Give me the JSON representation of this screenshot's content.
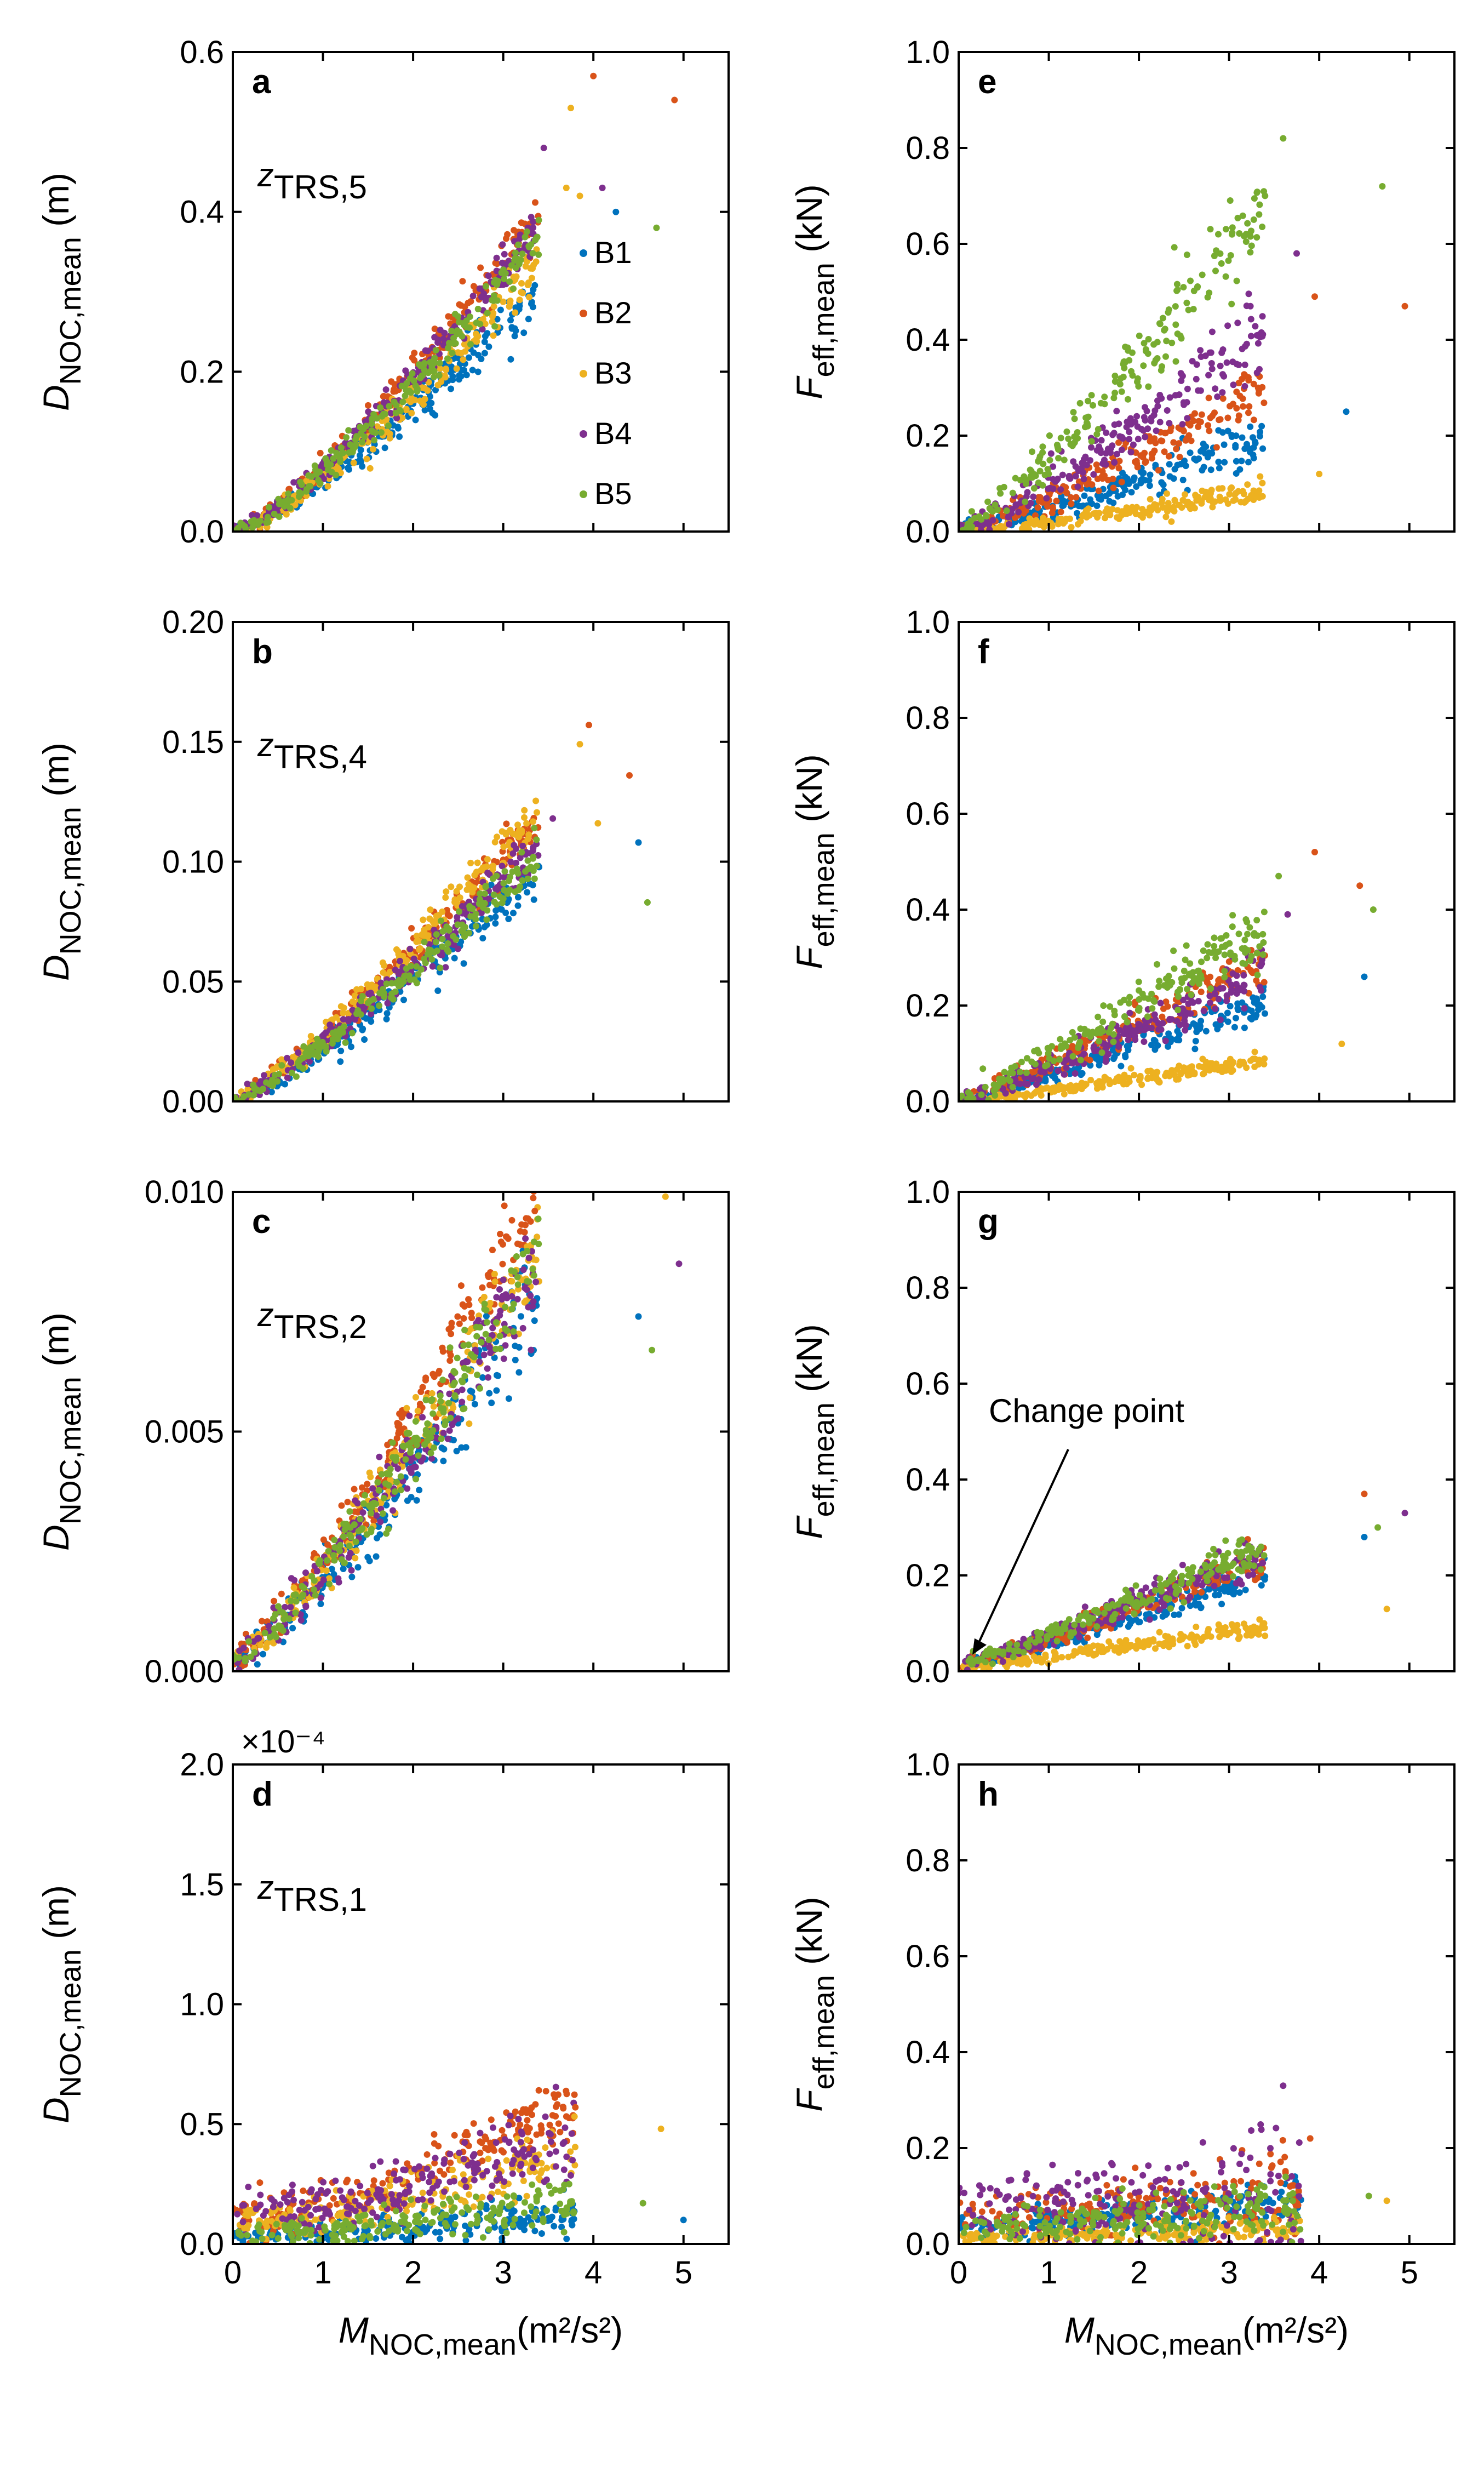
{
  "colors": {
    "B1": "#0072BD",
    "B2": "#D95319",
    "B3": "#EDB120",
    "B4": "#7E2F8E",
    "B5": "#77AC30"
  },
  "legend": [
    "B1",
    "B2",
    "B3",
    "B4",
    "B5"
  ],
  "x_axis": {
    "label_main": "M",
    "label_sub": "NOC,mean",
    "label_units": "(m²/s²)",
    "ticks": [
      "0",
      "1",
      "2",
      "3",
      "4",
      "5"
    ],
    "range": [
      0,
      5.5
    ]
  },
  "annotation": {
    "text": "Change point"
  },
  "chart_data": [
    {
      "type": "scatter",
      "panel": "a",
      "zone_main": "z",
      "zone_sub": "TRS,5",
      "ylabel_main": "D",
      "ylabel_sub": "NOC,mean",
      "ylabel_units": "(m)",
      "ylim": [
        0,
        0.6
      ],
      "yticks": [
        "0.0",
        "0.2",
        "0.4",
        "0.6"
      ],
      "exponent": "",
      "trend": [
        0.062,
        0.08,
        0.068,
        0.078,
        0.075
      ],
      "noise": [
        0.012,
        0.012,
        0.012,
        0.012,
        0.012
      ],
      "power": 1.3,
      "xmax": 3.4,
      "base": [
        0,
        0,
        0,
        0,
        0
      ],
      "outliers": [
        {
          "series": "B1",
          "x": 4.25,
          "y": 0.4
        },
        {
          "series": "B2",
          "x": 4.0,
          "y": 0.57
        },
        {
          "series": "B2",
          "x": 4.9,
          "y": 0.54
        },
        {
          "series": "B3",
          "x": 3.75,
          "y": 0.53
        },
        {
          "series": "B3",
          "x": 3.85,
          "y": 0.42
        },
        {
          "series": "B3",
          "x": 3.7,
          "y": 0.43
        },
        {
          "series": "B4",
          "x": 3.45,
          "y": 0.48
        },
        {
          "series": "B4",
          "x": 4.1,
          "y": 0.43
        },
        {
          "series": "B5",
          "x": 4.7,
          "y": 0.38
        }
      ]
    },
    {
      "type": "scatter",
      "panel": "b",
      "zone_main": "z",
      "zone_sub": "TRS,4",
      "ylabel_main": "D",
      "ylabel_sub": "NOC,mean",
      "ylabel_units": "(m)",
      "ylim": [
        0,
        0.2
      ],
      "yticks": [
        "0.00",
        "0.05",
        "0.10",
        "0.15",
        "0.20"
      ],
      "exponent": "",
      "trend": [
        0.022,
        0.027,
        0.028,
        0.025,
        0.024
      ],
      "noise": [
        0.004,
        0.004,
        0.004,
        0.004,
        0.004
      ],
      "power": 1.2,
      "xmax": 3.4,
      "base": [
        0,
        0,
        0,
        0,
        0
      ],
      "outliers": [
        {
          "series": "B1",
          "x": 4.5,
          "y": 0.108
        },
        {
          "series": "B2",
          "x": 3.95,
          "y": 0.157
        },
        {
          "series": "B2",
          "x": 4.4,
          "y": 0.136
        },
        {
          "series": "B3",
          "x": 3.85,
          "y": 0.149
        },
        {
          "series": "B3",
          "x": 4.05,
          "y": 0.116
        },
        {
          "series": "B4",
          "x": 3.55,
          "y": 0.118
        },
        {
          "series": "B5",
          "x": 4.6,
          "y": 0.083
        }
      ]
    },
    {
      "type": "scatter",
      "panel": "c",
      "zone_main": "z",
      "zone_sub": "TRS,2",
      "ylabel_main": "D",
      "ylabel_sub": "NOC,mean",
      "ylabel_units": "(m)",
      "ylim": [
        0,
        0.01
      ],
      "yticks": [
        "0.000",
        "0.005",
        "0.010"
      ],
      "exponent": "",
      "trend": [
        0.00165,
        0.0021,
        0.0019,
        0.0018,
        0.00185
      ],
      "noise": [
        0.0004,
        0.0004,
        0.0004,
        0.0004,
        0.0004
      ],
      "power": 1.25,
      "xmax": 3.4,
      "base": [
        0.0002,
        0.0003,
        0.0002,
        0.0003,
        0.0003
      ],
      "outliers": [
        {
          "series": "B1",
          "x": 4.5,
          "y": 0.0074
        },
        {
          "series": "B2",
          "x": 3.35,
          "y": 0.0096
        },
        {
          "series": "B3",
          "x": 4.8,
          "y": 0.0099
        },
        {
          "series": "B4",
          "x": 4.95,
          "y": 0.0085
        },
        {
          "series": "B5",
          "x": 4.65,
          "y": 0.0067
        }
      ]
    },
    {
      "type": "scatter",
      "panel": "d",
      "zone_main": "z",
      "zone_sub": "TRS,1",
      "ylabel_main": "D",
      "ylabel_sub": "NOC,mean",
      "ylabel_units": "(m)",
      "ylim": [
        0,
        2.0
      ],
      "yticks": [
        "0.0",
        "0.5",
        "1.0",
        "1.5",
        "2.0"
      ],
      "exponent": "×10⁻⁴",
      "trend": [
        0.01,
        0.06,
        0.035,
        0.04,
        0.015
      ],
      "noise": [
        0.03,
        0.05,
        0.04,
        0.06,
        0.04
      ],
      "power": 1.6,
      "xmax": 3.8,
      "base": [
        0.04,
        0.12,
        0.1,
        0.14,
        0.05
      ],
      "outliers": [
        {
          "series": "B1",
          "x": 5.0,
          "y": 0.1
        },
        {
          "series": "B2",
          "x": 3.8,
          "y": 0.57
        },
        {
          "series": "B3",
          "x": 4.75,
          "y": 0.48
        },
        {
          "series": "B5",
          "x": 4.55,
          "y": 0.17
        }
      ]
    },
    {
      "type": "scatter",
      "panel": "e",
      "zone_main": "",
      "zone_sub": "",
      "ylabel_main": "F",
      "ylabel_sub": "eff,mean",
      "ylabel_units": "(kN)",
      "ylim": [
        0,
        1.0
      ],
      "yticks": [
        "0.0",
        "0.2",
        "0.4",
        "0.6",
        "0.8",
        "1.0"
      ],
      "exponent": "",
      "trend": [
        0.045,
        0.07,
        0.02,
        0.095,
        0.155
      ],
      "noise": [
        0.02,
        0.025,
        0.01,
        0.03,
        0.04
      ],
      "power": 1.2,
      "xmax": 3.4,
      "base": [
        0,
        0,
        0,
        0,
        0
      ],
      "outliers": [
        {
          "series": "B1",
          "x": 4.3,
          "y": 0.25
        },
        {
          "series": "B2",
          "x": 3.95,
          "y": 0.49
        },
        {
          "series": "B2",
          "x": 4.95,
          "y": 0.47
        },
        {
          "series": "B3",
          "x": 4.0,
          "y": 0.12
        },
        {
          "series": "B4",
          "x": 3.75,
          "y": 0.58
        },
        {
          "series": "B5",
          "x": 3.6,
          "y": 0.82
        },
        {
          "series": "B5",
          "x": 4.7,
          "y": 0.72
        }
      ]
    },
    {
      "type": "scatter",
      "panel": "f",
      "zone_main": "",
      "zone_sub": "",
      "ylabel_main": "F",
      "ylabel_sub": "eff,mean",
      "ylabel_units": "(kN)",
      "ylim": [
        0,
        1.0
      ],
      "yticks": [
        "0.0",
        "0.2",
        "0.4",
        "0.6",
        "0.8",
        "1.0"
      ],
      "exponent": "",
      "trend": [
        0.055,
        0.075,
        0.022,
        0.07,
        0.095
      ],
      "noise": [
        0.015,
        0.02,
        0.008,
        0.02,
        0.025
      ],
      "power": 1.1,
      "xmax": 3.4,
      "base": [
        0,
        0,
        0,
        0,
        0
      ],
      "outliers": [
        {
          "series": "B1",
          "x": 4.5,
          "y": 0.26
        },
        {
          "series": "B2",
          "x": 3.95,
          "y": 0.52
        },
        {
          "series": "B2",
          "x": 4.45,
          "y": 0.45
        },
        {
          "series": "B3",
          "x": 4.25,
          "y": 0.12
        },
        {
          "series": "B4",
          "x": 3.65,
          "y": 0.39
        },
        {
          "series": "B5",
          "x": 3.55,
          "y": 0.47
        },
        {
          "series": "B5",
          "x": 4.6,
          "y": 0.4
        }
      ]
    },
    {
      "type": "scatter",
      "panel": "g",
      "zone_main": "",
      "zone_sub": "",
      "ylabel_main": "F",
      "ylabel_sub": "eff,mean",
      "ylabel_units": "(kN)",
      "ylim": [
        0,
        1.0
      ],
      "yticks": [
        "0.0",
        "0.2",
        "0.4",
        "0.6",
        "0.8",
        "1.0"
      ],
      "exponent": "",
      "trend": [
        0.05,
        0.06,
        0.022,
        0.062,
        0.065
      ],
      "noise": [
        0.012,
        0.015,
        0.008,
        0.015,
        0.015
      ],
      "power": 1.1,
      "xmax": 3.4,
      "base": [
        0.01,
        0.01,
        0.01,
        0.01,
        0.015
      ],
      "outliers": [
        {
          "series": "B1",
          "x": 4.5,
          "y": 0.28
        },
        {
          "series": "B2",
          "x": 4.5,
          "y": 0.37
        },
        {
          "series": "B3",
          "x": 4.75,
          "y": 0.13
        },
        {
          "series": "B4",
          "x": 4.95,
          "y": 0.33
        },
        {
          "series": "B5",
          "x": 4.65,
          "y": 0.3
        }
      ]
    },
    {
      "type": "scatter",
      "panel": "h",
      "zone_main": "",
      "zone_sub": "",
      "ylabel_main": "F",
      "ylabel_sub": "eff,mean",
      "ylabel_units": "(kN)",
      "ylim": [
        0,
        1.0
      ],
      "yticks": [
        "0.0",
        "0.2",
        "0.4",
        "0.6",
        "0.8",
        "1.0"
      ],
      "exponent": "",
      "trend": [
        0.01,
        0.01,
        0.004,
        0.006,
        0.01
      ],
      "noise": [
        0.015,
        0.03,
        0.01,
        0.05,
        0.025
      ],
      "power": 1.2,
      "xmax": 3.8,
      "base": [
        0.04,
        0.06,
        0.015,
        0.09,
        0.035
      ],
      "outliers": [
        {
          "series": "B2",
          "x": 3.9,
          "y": 0.22
        },
        {
          "series": "B3",
          "x": 4.75,
          "y": 0.09
        },
        {
          "series": "B4",
          "x": 3.6,
          "y": 0.33
        },
        {
          "series": "B5",
          "x": 4.55,
          "y": 0.1
        }
      ]
    }
  ]
}
